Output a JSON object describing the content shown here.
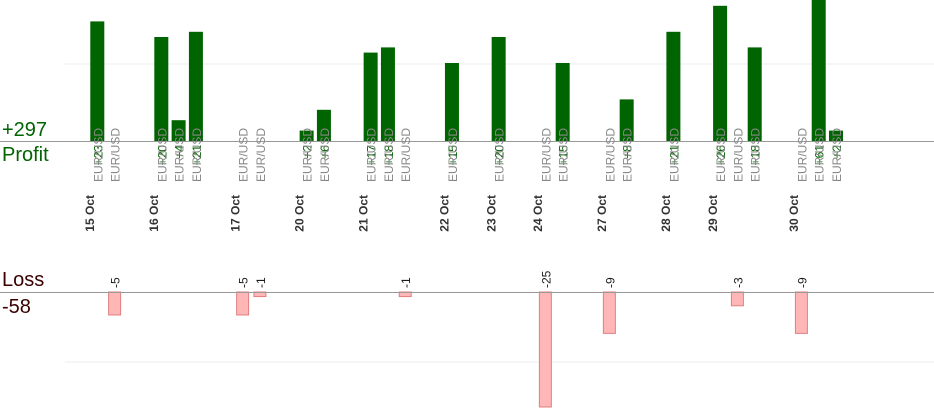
{
  "summary": {
    "profit_total": "+297",
    "profit_label": "Profit",
    "loss_label": "Loss",
    "loss_total": "-58"
  },
  "colors": {
    "profit_bar": "#006400",
    "loss_bar": "#ffb6b6",
    "loss_bar_border": "#e08080",
    "profit_text": "#006400",
    "loss_text": "#1a1a1a",
    "date_text": "#333333",
    "pair_text": "#888888"
  },
  "chart_data": {
    "type": "bar",
    "groups": [
      {
        "date": "15 Oct",
        "trades": [
          {
            "pair": "EUR/USD",
            "result": 23,
            "label": "+23"
          },
          {
            "pair": "EUR/USD",
            "result": -5,
            "label": "-5"
          }
        ]
      },
      {
        "date": "16 Oct",
        "trades": [
          {
            "pair": "EUR/USD",
            "result": 20,
            "label": "+20"
          },
          {
            "pair": "EUR/USD",
            "result": 4,
            "label": "+4"
          },
          {
            "pair": "EUR/USD",
            "result": 21,
            "label": "+21"
          }
        ]
      },
      {
        "date": "17 Oct",
        "trades": [
          {
            "pair": "EUR/USD",
            "result": -5,
            "label": "-5"
          },
          {
            "pair": "EUR/USD",
            "result": -1,
            "label": "-1"
          }
        ]
      },
      {
        "date": "20 Oct",
        "trades": [
          {
            "pair": "EUR/USD",
            "result": 2,
            "label": "+2"
          },
          {
            "pair": "EUR/USD",
            "result": 6,
            "label": "+6"
          }
        ]
      },
      {
        "date": "21 Oct",
        "trades": [
          {
            "pair": "EUR/USD",
            "result": 17,
            "label": "+17"
          },
          {
            "pair": "EUR/USD",
            "result": 18,
            "label": "+18"
          },
          {
            "pair": "EUR/USD",
            "result": -1,
            "label": "-1"
          }
        ]
      },
      {
        "date": "22 Oct",
        "trades": [
          {
            "pair": "EUR/USD",
            "result": 15,
            "label": "+15"
          }
        ]
      },
      {
        "date": "23 Oct",
        "trades": [
          {
            "pair": "EUR/USD",
            "result": 20,
            "label": "+20"
          }
        ]
      },
      {
        "date": "24 Oct",
        "trades": [
          {
            "pair": "EUR/USD",
            "result": -25,
            "label": "-25"
          },
          {
            "pair": "EUR/USD",
            "result": 15,
            "label": "+15"
          }
        ]
      },
      {
        "date": "27 Oct",
        "trades": [
          {
            "pair": "EUR/USD",
            "result": -9,
            "label": "-9"
          },
          {
            "pair": "EUR/USD",
            "result": 8,
            "label": "+8"
          }
        ]
      },
      {
        "date": "28 Oct",
        "trades": [
          {
            "pair": "EUR/USD",
            "result": 21,
            "label": "+21"
          }
        ]
      },
      {
        "date": "29 Oct",
        "trades": [
          {
            "pair": "EUR/USD",
            "result": 26,
            "label": "+26"
          },
          {
            "pair": "EUR/USD",
            "result": -3,
            "label": "-3"
          },
          {
            "pair": "EUR/USD",
            "result": 18,
            "label": "+18"
          }
        ]
      },
      {
        "date": "30 Oct",
        "trades": [
          {
            "pair": "EUR/USD",
            "result": -9,
            "label": "-9"
          },
          {
            "pair": "EUR/USD",
            "result": 61,
            "label": "+61"
          },
          {
            "pair": "EUR/USD",
            "result": 2,
            "label": "+2"
          }
        ]
      }
    ],
    "gridlines": true
  }
}
